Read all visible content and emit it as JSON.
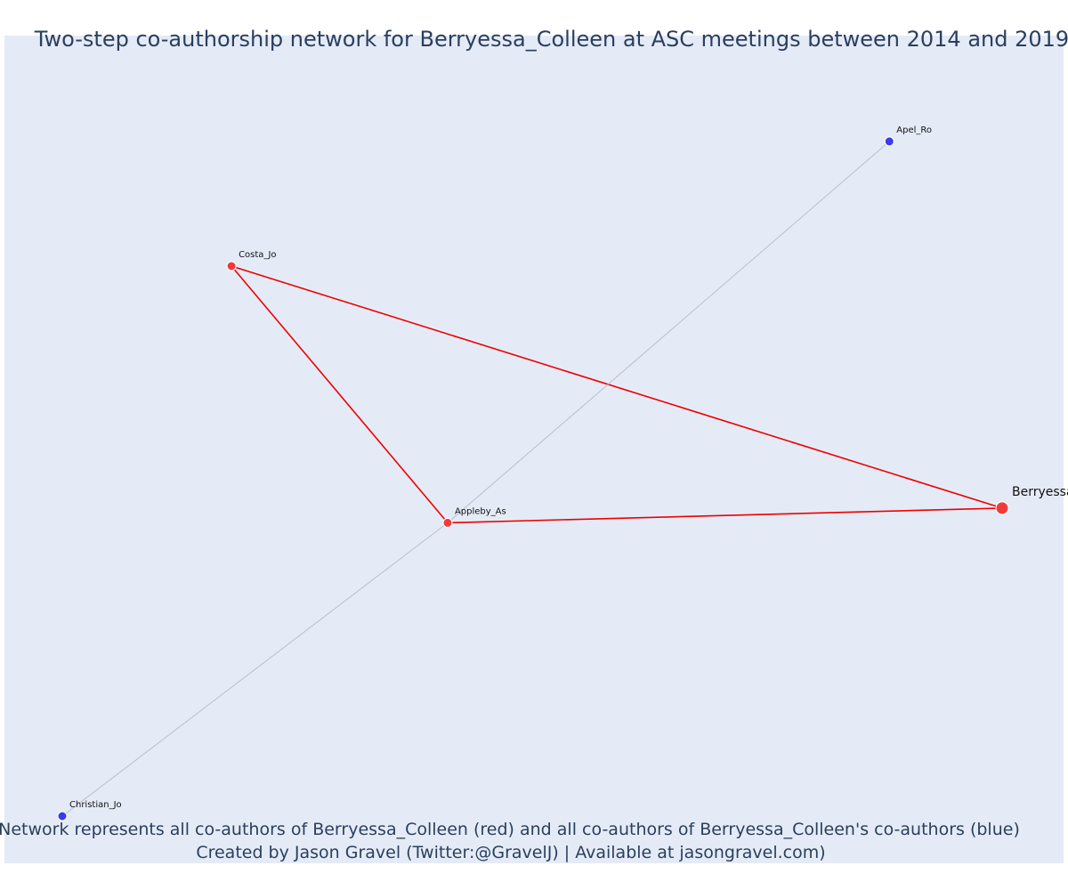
{
  "title": "Two-step co-authorship network for Berryessa_Colleen at ASC meetings between 2014 and 2019",
  "caption": {
    "line1": "Network represents all co-authors of Berryessa_Colleen (red) and all co-authors of Berryessa_Colleen's co-authors (blue)",
    "line2": "Created by Jason Gravel (Twitter:@GravelJ) | Available at jasongravel.com)"
  },
  "colors": {
    "background": "#e5ebf6",
    "red_node": "#ef3b3b",
    "blue_node": "#3b3bef",
    "red_edge": "#ee0000",
    "gray_edge": "#b9bfcc",
    "text": "#2a3f5f"
  },
  "chart_data": {
    "type": "network",
    "legend": "Network represents all co-authors of Berryessa_Colleen (red) and all co-authors of Berryessa_Colleen's co-authors (blue)",
    "nodes": [
      {
        "id": "Berryessa_Colleen",
        "label": "Berryessa_Colleen",
        "group": "focal",
        "color": "red",
        "x": 1.0,
        "y": 0.42
      },
      {
        "id": "Costa_Jo",
        "label": "Costa_Jo",
        "group": "coauthor",
        "color": "red",
        "x": 0.18,
        "y": 0.75
      },
      {
        "id": "Appleby_As",
        "label": "Appleby_As",
        "group": "coauthor",
        "color": "red",
        "x": 0.41,
        "y": 0.4
      },
      {
        "id": "Apel_Ro",
        "label": "Apel_Ro",
        "group": "second-step",
        "color": "blue",
        "x": 0.88,
        "y": 0.92
      },
      {
        "id": "Christian_Jo",
        "label": "Christian_Jo",
        "group": "second-step",
        "color": "blue",
        "x": 0.0,
        "y": 0.0
      }
    ],
    "edges": [
      {
        "source": "Costa_Jo",
        "target": "Berryessa_Colleen",
        "color": "red"
      },
      {
        "source": "Costa_Jo",
        "target": "Appleby_As",
        "color": "red"
      },
      {
        "source": "Appleby_As",
        "target": "Berryessa_Colleen",
        "color": "red"
      },
      {
        "source": "Apel_Ro",
        "target": "Appleby_As",
        "color": "gray"
      },
      {
        "source": "Appleby_As",
        "target": "Christian_Jo",
        "color": "gray"
      }
    ]
  }
}
